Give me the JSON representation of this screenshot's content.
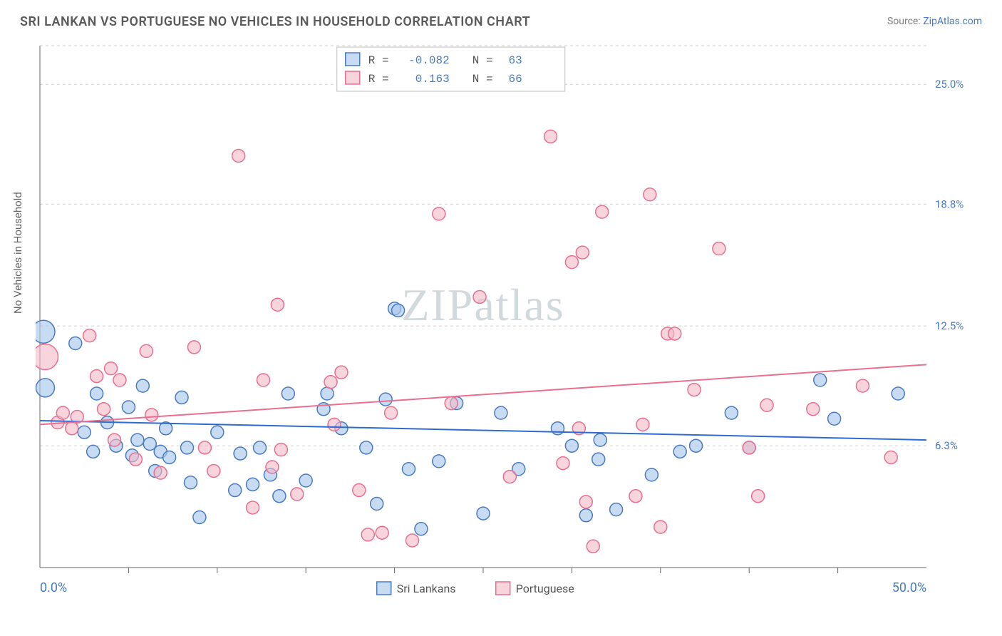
{
  "title": "SRI LANKAN VS PORTUGUESE NO VEHICLES IN HOUSEHOLD CORRELATION CHART",
  "source_label": "Source:",
  "source_name": "ZipAtlas.com",
  "y_axis_label": "No Vehicles in Household",
  "watermark": "ZIPatlas",
  "chart": {
    "type": "scatter",
    "plot_bg": "#ffffff",
    "grid_color": "#cfcfcf",
    "axis_color": "#666666",
    "tick_label_color": "#4a7bbf",
    "x_min": 0.0,
    "x_max": 50.0,
    "y_min": 0.0,
    "y_max": 27.0,
    "default_marker_r": 9,
    "marker_stroke_width": 1.5,
    "x_ticks_minor": [
      5,
      10,
      15,
      20,
      25,
      30,
      35,
      40,
      45
    ],
    "x_ticks_labeled": [
      {
        "v": 0.0,
        "label": "0.0%"
      },
      {
        "v": 50.0,
        "label": "50.0%"
      }
    ],
    "y_gridlines": [
      6.3,
      12.5,
      18.8,
      25.0,
      27.0
    ],
    "y_ticks_labeled": [
      {
        "v": 6.3,
        "label": "6.3%"
      },
      {
        "v": 12.5,
        "label": "12.5%"
      },
      {
        "v": 18.8,
        "label": "18.8%"
      },
      {
        "v": 25.0,
        "label": "25.0%"
      }
    ],
    "series": [
      {
        "key": "sri_lankans",
        "name": "Sri Lankans",
        "legend_name": "Sri Lankans",
        "fill": "#a9c7ec",
        "stroke": "#4a7bbf",
        "fill_opacity": 0.65,
        "R": -0.082,
        "N": 63,
        "trend": {
          "y_at_xmin": 7.6,
          "y_at_xmax": 6.6,
          "stroke": "#2e6bd0",
          "width": 2
        },
        "points": [
          {
            "x": 0.2,
            "y": 12.2,
            "r": 16
          },
          {
            "x": 0.3,
            "y": 9.3,
            "r": 13
          },
          {
            "x": 2.0,
            "y": 11.6
          },
          {
            "x": 2.5,
            "y": 7.0
          },
          {
            "x": 3.0,
            "y": 6.0
          },
          {
            "x": 3.2,
            "y": 9.0
          },
          {
            "x": 3.8,
            "y": 7.5
          },
          {
            "x": 4.3,
            "y": 6.3
          },
          {
            "x": 5.0,
            "y": 8.3
          },
          {
            "x": 5.2,
            "y": 5.8
          },
          {
            "x": 5.5,
            "y": 6.6
          },
          {
            "x": 5.8,
            "y": 9.4
          },
          {
            "x": 6.2,
            "y": 6.4
          },
          {
            "x": 6.5,
            "y": 5.0
          },
          {
            "x": 6.8,
            "y": 6.0
          },
          {
            "x": 7.1,
            "y": 7.2
          },
          {
            "x": 7.3,
            "y": 5.7
          },
          {
            "x": 8.0,
            "y": 8.8
          },
          {
            "x": 8.3,
            "y": 6.2
          },
          {
            "x": 8.5,
            "y": 4.4
          },
          {
            "x": 9.0,
            "y": 2.6
          },
          {
            "x": 10.0,
            "y": 7.0
          },
          {
            "x": 11.0,
            "y": 4.0
          },
          {
            "x": 11.3,
            "y": 5.9
          },
          {
            "x": 12.0,
            "y": 4.3
          },
          {
            "x": 12.4,
            "y": 6.2
          },
          {
            "x": 13.0,
            "y": 4.8
          },
          {
            "x": 13.5,
            "y": 3.7
          },
          {
            "x": 14.0,
            "y": 9.0
          },
          {
            "x": 15.0,
            "y": 4.5
          },
          {
            "x": 16.0,
            "y": 8.2
          },
          {
            "x": 16.2,
            "y": 9.0
          },
          {
            "x": 17.0,
            "y": 7.2
          },
          {
            "x": 18.4,
            "y": 6.2
          },
          {
            "x": 19.0,
            "y": 3.3
          },
          {
            "x": 19.5,
            "y": 8.7
          },
          {
            "x": 20.0,
            "y": 13.4
          },
          {
            "x": 20.2,
            "y": 13.3
          },
          {
            "x": 20.8,
            "y": 5.1
          },
          {
            "x": 21.5,
            "y": 2.0
          },
          {
            "x": 22.5,
            "y": 5.5
          },
          {
            "x": 23.5,
            "y": 8.5
          },
          {
            "x": 25.0,
            "y": 2.8
          },
          {
            "x": 26.0,
            "y": 8.0
          },
          {
            "x": 27.0,
            "y": 5.1
          },
          {
            "x": 29.2,
            "y": 7.2
          },
          {
            "x": 30.0,
            "y": 6.3
          },
          {
            "x": 30.8,
            "y": 2.7
          },
          {
            "x": 31.5,
            "y": 5.6
          },
          {
            "x": 31.6,
            "y": 6.6
          },
          {
            "x": 32.5,
            "y": 3.0
          },
          {
            "x": 34.5,
            "y": 4.8
          },
          {
            "x": 36.1,
            "y": 6.0
          },
          {
            "x": 37.0,
            "y": 6.3
          },
          {
            "x": 39.0,
            "y": 8.0
          },
          {
            "x": 40.0,
            "y": 6.2
          },
          {
            "x": 44.0,
            "y": 9.7
          },
          {
            "x": 44.8,
            "y": 7.7
          },
          {
            "x": 48.4,
            "y": 9.0
          }
        ]
      },
      {
        "key": "portuguese",
        "name": "Portuguese",
        "legend_name": "Portuguese",
        "fill": "#f3b9c7",
        "stroke": "#e86f8f",
        "fill_opacity": 0.6,
        "R": 0.163,
        "N": 66,
        "trend": {
          "y_at_xmin": 7.4,
          "y_at_xmax": 10.5,
          "stroke": "#e86f8f",
          "width": 2
        },
        "points": [
          {
            "x": 0.3,
            "y": 10.9,
            "r": 18
          },
          {
            "x": 1.0,
            "y": 7.5
          },
          {
            "x": 1.3,
            "y": 8.0
          },
          {
            "x": 1.8,
            "y": 7.2
          },
          {
            "x": 2.1,
            "y": 7.8
          },
          {
            "x": 2.8,
            "y": 12.0
          },
          {
            "x": 3.2,
            "y": 9.9
          },
          {
            "x": 3.6,
            "y": 8.2
          },
          {
            "x": 4.0,
            "y": 10.3
          },
          {
            "x": 4.2,
            "y": 6.6
          },
          {
            "x": 4.5,
            "y": 9.7
          },
          {
            "x": 5.4,
            "y": 5.6
          },
          {
            "x": 6.0,
            "y": 11.2
          },
          {
            "x": 6.3,
            "y": 7.9
          },
          {
            "x": 6.8,
            "y": 4.9
          },
          {
            "x": 8.7,
            "y": 11.4
          },
          {
            "x": 9.3,
            "y": 6.2
          },
          {
            "x": 9.8,
            "y": 5.0
          },
          {
            "x": 11.2,
            "y": 21.3
          },
          {
            "x": 12.0,
            "y": 3.1
          },
          {
            "x": 12.6,
            "y": 9.7
          },
          {
            "x": 13.1,
            "y": 5.2
          },
          {
            "x": 13.4,
            "y": 13.6
          },
          {
            "x": 13.6,
            "y": 6.1
          },
          {
            "x": 14.5,
            "y": 3.8
          },
          {
            "x": 16.4,
            "y": 9.6
          },
          {
            "x": 16.6,
            "y": 7.4
          },
          {
            "x": 17.0,
            "y": 10.1
          },
          {
            "x": 18.0,
            "y": 4.0
          },
          {
            "x": 18.5,
            "y": 1.7
          },
          {
            "x": 19.3,
            "y": 1.8
          },
          {
            "x": 19.8,
            "y": 8.0
          },
          {
            "x": 21.0,
            "y": 1.4
          },
          {
            "x": 22.5,
            "y": 18.3
          },
          {
            "x": 23.2,
            "y": 8.5
          },
          {
            "x": 24.8,
            "y": 14.0
          },
          {
            "x": 26.5,
            "y": 4.7
          },
          {
            "x": 28.8,
            "y": 22.3
          },
          {
            "x": 29.5,
            "y": 5.4
          },
          {
            "x": 30.0,
            "y": 15.8
          },
          {
            "x": 30.4,
            "y": 7.2
          },
          {
            "x": 30.6,
            "y": 16.3
          },
          {
            "x": 30.8,
            "y": 3.4
          },
          {
            "x": 31.2,
            "y": 1.1
          },
          {
            "x": 31.7,
            "y": 18.4
          },
          {
            "x": 33.6,
            "y": 3.7
          },
          {
            "x": 34.0,
            "y": 7.4
          },
          {
            "x": 34.4,
            "y": 19.3
          },
          {
            "x": 35.0,
            "y": 2.1
          },
          {
            "x": 35.4,
            "y": 12.1
          },
          {
            "x": 35.8,
            "y": 12.1
          },
          {
            "x": 36.9,
            "y": 9.2
          },
          {
            "x": 38.3,
            "y": 16.5
          },
          {
            "x": 40.0,
            "y": 6.2
          },
          {
            "x": 40.5,
            "y": 3.7
          },
          {
            "x": 41.0,
            "y": 8.4
          },
          {
            "x": 43.6,
            "y": 8.2
          },
          {
            "x": 46.4,
            "y": 9.4
          },
          {
            "x": 48.0,
            "y": 5.7
          }
        ]
      }
    ],
    "correlation_legend": [
      {
        "series": "sri_lankans",
        "R": "-0.082",
        "N": "63"
      },
      {
        "series": "portuguese",
        "R": "0.163",
        "N": "66"
      }
    ],
    "bottom_legend": [
      {
        "series": "sri_lankans",
        "label": "Sri Lankans"
      },
      {
        "series": "portuguese",
        "label": "Portuguese"
      }
    ]
  }
}
